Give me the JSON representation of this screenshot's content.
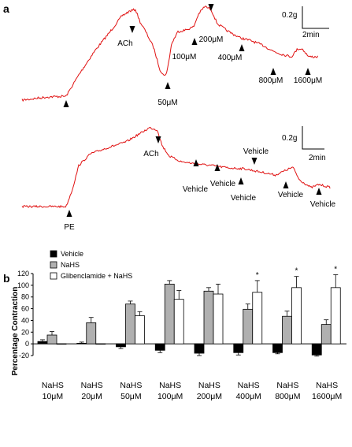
{
  "panel_a": {
    "label": "a",
    "trace_color": "#e01010",
    "top_trace": {
      "markers": [
        {
          "label": "ACh",
          "at": 0.42,
          "dir": "down"
        },
        {
          "label": "100μM",
          "at": 0.5,
          "dir": "up"
        },
        {
          "label": "200μM",
          "at": 0.6,
          "dir": "down"
        },
        {
          "label": "400μM",
          "at": 0.69,
          "dir": "up"
        },
        {
          "label": "800μM",
          "at": 0.84,
          "dir": "up"
        },
        {
          "label": "1600μM",
          "at": 0.97,
          "dir": "up"
        },
        {
          "label": "50μM",
          "at": 0.52,
          "dir": "up"
        }
      ],
      "scale_force": "0.2g",
      "scale_time": "2min"
    },
    "bottom_trace": {
      "markers": [
        {
          "label": "PE",
          "at": 0.16,
          "dir": "up"
        },
        {
          "label": "ACh",
          "at": 0.48,
          "dir": "down"
        },
        {
          "label": "Vehicle",
          "at": 0.6,
          "dir": "up"
        },
        {
          "label": "Vehicle",
          "at": 0.67,
          "dir": "up"
        },
        {
          "label": "Vehicle",
          "at": 0.76,
          "dir": "up"
        },
        {
          "label": "Vehicle",
          "at": 0.8,
          "dir": "down"
        },
        {
          "label": "Vehicle",
          "at": 0.9,
          "dir": "up"
        },
        {
          "label": "Vehicle",
          "at": 1.0,
          "dir": "up"
        }
      ],
      "scale_force": "0.2g",
      "scale_time": "2min"
    }
  },
  "chart_data": {
    "type": "bar",
    "panel_label": "b",
    "title": "",
    "xlabel": "",
    "ylabel": "Percentage Contraction",
    "ylim": [
      -20,
      120
    ],
    "yticks": [
      -20,
      0,
      20,
      40,
      60,
      80,
      100,
      120
    ],
    "categories": [
      "NaHS\n10μM",
      "NaHS\n20μM",
      "NaHS\n50μM",
      "NaHS\n100μM",
      "NaHS\n200μM",
      "NaHS\n400μM",
      "NaHS\n800μM",
      "NaHS\n1600μM"
    ],
    "series": [
      {
        "name": "Vehicle",
        "color": "#000000",
        "values": [
          4,
          1,
          -5,
          -11,
          -16,
          -15,
          -15,
          -19
        ],
        "errors": [
          3,
          2,
          3,
          4,
          4,
          4,
          2,
          2
        ]
      },
      {
        "name": "NaHS",
        "color": "#b0b0b0",
        "values": [
          15,
          36,
          68,
          102,
          90,
          59,
          47,
          33
        ],
        "errors": [
          6,
          9,
          5,
          6,
          6,
          9,
          9,
          8
        ]
      },
      {
        "name": "Glibenclamide + NaHS",
        "color": "#ffffff",
        "values": [
          0,
          0,
          48,
          76,
          85,
          88,
          96,
          96
        ],
        "errors": [
          0,
          0,
          7,
          15,
          17,
          20,
          19,
          22
        ]
      }
    ],
    "significance": [
      "",
      "",
      "",
      "",
      "",
      "*",
      "*",
      "*"
    ],
    "legend_position": "top-left",
    "grid": false
  }
}
